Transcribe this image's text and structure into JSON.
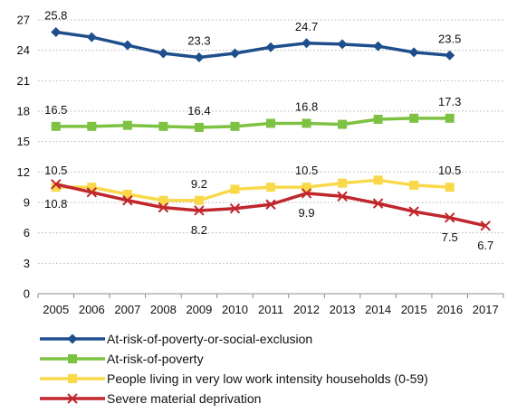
{
  "chart_data": {
    "type": "line",
    "title": "",
    "x": [
      2005,
      2006,
      2007,
      2008,
      2009,
      2010,
      2011,
      2012,
      2013,
      2014,
      2015,
      2016,
      2017
    ],
    "x_tick_labels": [
      "2005",
      "2006",
      "2007",
      "2008",
      "2009",
      "2010",
      "2011",
      "2012",
      "2013",
      "2014",
      "2015",
      "2016",
      "2017"
    ],
    "ylim": [
      0,
      27
    ],
    "y_ticks": [
      0,
      3,
      6,
      9,
      12,
      15,
      18,
      21,
      24,
      27
    ],
    "y_tick_labels": [
      "0",
      "3",
      "6",
      "9",
      "12",
      "15",
      "18",
      "21",
      "24",
      "27"
    ],
    "grid": "horizontal-dotted",
    "legend_position": "bottom",
    "series": [
      {
        "name": "At-risk-of-poverty-or-social-exclusion",
        "color": "#1f4e8c",
        "marker": "diamond",
        "values": [
          25.8,
          25.3,
          24.5,
          23.7,
          23.3,
          23.7,
          24.3,
          24.7,
          24.6,
          24.4,
          23.8,
          23.5,
          null
        ],
        "labels": [
          {
            "x": 2005,
            "text": "25.8",
            "pos": "above"
          },
          {
            "x": 2009,
            "text": "23.3",
            "pos": "above"
          },
          {
            "x": 2012,
            "text": "24.7",
            "pos": "above"
          },
          {
            "x": 2016,
            "text": "23.5",
            "pos": "above"
          }
        ]
      },
      {
        "name": "At-risk-of-poverty",
        "color": "#7dc242",
        "marker": "square",
        "values": [
          16.5,
          16.5,
          16.6,
          16.5,
          16.4,
          16.5,
          16.8,
          16.8,
          16.7,
          17.2,
          17.3,
          17.3,
          null
        ],
        "labels": [
          {
            "x": 2005,
            "text": "16.5",
            "pos": "above"
          },
          {
            "x": 2009,
            "text": "16.4",
            "pos": "above"
          },
          {
            "x": 2012,
            "text": "16.8",
            "pos": "above"
          },
          {
            "x": 2016,
            "text": "17.3",
            "pos": "above"
          }
        ]
      },
      {
        "name": "People living in very low work intensity households (0-59)",
        "color": "#f9d84a",
        "marker": "square",
        "values": [
          10.5,
          10.5,
          9.8,
          9.2,
          9.2,
          10.3,
          10.5,
          10.5,
          10.9,
          11.2,
          10.7,
          10.5,
          null
        ],
        "labels": [
          {
            "x": 2005,
            "text": "10.5",
            "pos": "above"
          },
          {
            "x": 2009,
            "text": "9.2",
            "pos": "above"
          },
          {
            "x": 2012,
            "text": "10.5",
            "pos": "above"
          },
          {
            "x": 2016,
            "text": "10.5",
            "pos": "above"
          }
        ]
      },
      {
        "name": "Severe material deprivation",
        "color": "#c0272d",
        "marker": "x",
        "values": [
          10.8,
          10.0,
          9.2,
          8.5,
          8.2,
          8.4,
          8.8,
          9.9,
          9.6,
          8.9,
          8.1,
          7.5,
          6.7
        ],
        "labels": [
          {
            "x": 2005,
            "text": "10.8",
            "pos": "below"
          },
          {
            "x": 2009,
            "text": "8.2",
            "pos": "below"
          },
          {
            "x": 2012,
            "text": "9.9",
            "pos": "below"
          },
          {
            "x": 2016,
            "text": "7.5",
            "pos": "below"
          },
          {
            "x": 2017,
            "text": "6.7",
            "pos": "below"
          }
        ]
      }
    ]
  }
}
